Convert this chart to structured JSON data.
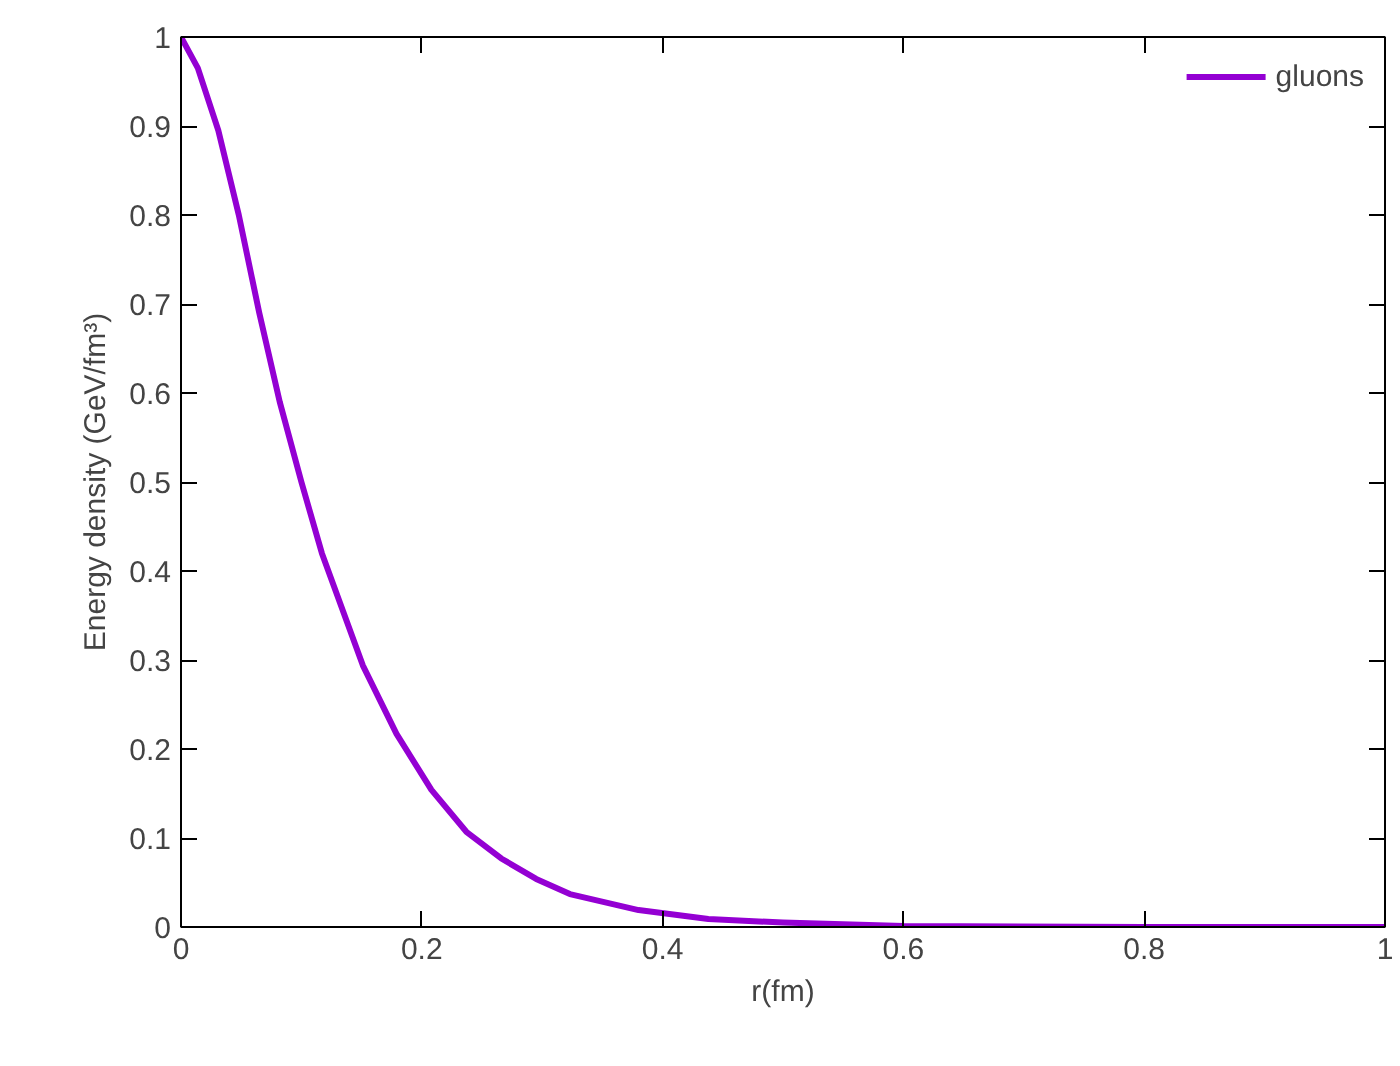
{
  "chart_data": {
    "type": "line",
    "xlabel": "r(fm)",
    "ylabel": "Energy density (GeV/fm³)",
    "xlim": [
      0,
      1
    ],
    "ylim": [
      0,
      1
    ],
    "xticks": [
      0,
      0.2,
      0.4,
      0.6,
      0.8,
      1
    ],
    "yticks": [
      0,
      0.1,
      0.2,
      0.3,
      0.4,
      0.5,
      0.6,
      0.7,
      0.8,
      0.9,
      1
    ],
    "grid": false,
    "legend": "top right",
    "marker": "none",
    "line_style": "solid",
    "series": [
      {
        "name": "gluons",
        "color": "#9400d3",
        "x": [
          0,
          0.014,
          0.031,
          0.048,
          0.065,
          0.082,
          0.1,
          0.117,
          0.134,
          0.151,
          0.179,
          0.208,
          0.237,
          0.266,
          0.295,
          0.323,
          0.38,
          0.438,
          0.5,
          0.6,
          0.8,
          1
        ],
        "values": [
          1,
          0.965,
          0.895,
          0.8,
          0.69,
          0.59,
          0.5,
          0.42,
          0.357,
          0.294,
          0.217,
          0.154,
          0.107,
          0.077,
          0.054,
          0.037,
          0.019,
          0.009,
          0.005,
          0.001,
          0,
          0
        ]
      }
    ]
  }
}
